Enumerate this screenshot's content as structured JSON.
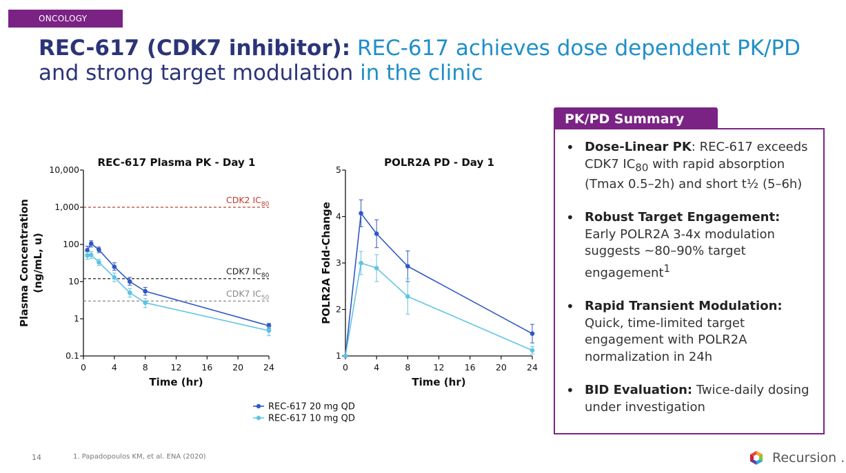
{
  "header": {
    "tag": "ONCOLOGY"
  },
  "title": {
    "bold": "REC-617 (CDK7 inhibitor):",
    "line1_rest": " REC-617 achieves dose dependent PK/PD",
    "line2_part1": "and strong target modulation",
    "line2_part2": " in the clinic"
  },
  "chart_data": [
    {
      "type": "line",
      "title": "REC-617 Plasma PK - Day 1",
      "xlabel": "Time (hr)",
      "ylabel": "Plasma Concentration (ng/mL, u)",
      "yscale": "log",
      "xlim": [
        0,
        24
      ],
      "ylim": [
        0.1,
        10000
      ],
      "xticks": [
        "0",
        "4",
        "8",
        "12",
        "16",
        "20",
        "24"
      ],
      "yticks": [
        "0.1",
        "1",
        "10",
        "100",
        "1,000",
        "10,000"
      ],
      "series": [
        {
          "name": "REC-617 20 mg QD",
          "color": "#2f57c4",
          "x": [
            0.5,
            1,
            2,
            4,
            6,
            8,
            24
          ],
          "y": [
            70,
            105,
            72,
            25,
            10,
            5.5,
            0.65
          ],
          "err": [
            [
              55,
              90
            ],
            [
              85,
              125
            ],
            [
              60,
              85
            ],
            [
              20,
              32
            ],
            [
              8,
              13
            ],
            [
              4.3,
              7
            ],
            [
              0.55,
              0.75
            ]
          ]
        },
        {
          "name": "REC-617 10 mg QD",
          "color": "#5fc4e2",
          "x": [
            0.5,
            1,
            2,
            4,
            6,
            8,
            24
          ],
          "y": [
            50,
            52,
            33,
            13,
            5,
            2.7,
            0.48
          ],
          "err": [
            [
              40,
              62
            ],
            [
              42,
              64
            ],
            [
              27,
              40
            ],
            [
              10,
              17
            ],
            [
              3.8,
              6.5
            ],
            [
              2,
              3.5
            ],
            [
              0.35,
              0.6
            ]
          ]
        }
      ],
      "reference_lines": [
        {
          "label": "CDK2 IC",
          "sub": "80",
          "value": 1000,
          "color": "#c0392b"
        },
        {
          "label": "CDK7 IC",
          "sub": "80",
          "value": 12,
          "color": "#222222"
        },
        {
          "label": "CDK7 IC",
          "sub": "50",
          "value": 3,
          "color": "#888888"
        }
      ]
    },
    {
      "type": "line",
      "title": "POLR2A PD - Day 1",
      "xlabel": "Time (hr)",
      "ylabel": "POLR2A Fold-Change",
      "xlim": [
        0,
        24
      ],
      "ylim": [
        1,
        5
      ],
      "xticks": [
        "0",
        "4",
        "8",
        "12",
        "16",
        "20",
        "24"
      ],
      "yticks": [
        "1",
        "2",
        "3",
        "4",
        "5"
      ],
      "series": [
        {
          "name": "REC-617 20 mg QD",
          "color": "#2f57c4",
          "x": [
            0,
            2,
            4,
            8,
            24
          ],
          "y": [
            1.0,
            4.07,
            3.63,
            2.93,
            1.48
          ],
          "err": [
            null,
            [
              3.78,
              4.36
            ],
            [
              3.33,
              3.93
            ],
            [
              2.6,
              3.26
            ],
            [
              1.28,
              1.68
            ]
          ]
        },
        {
          "name": "REC-617 10 mg QD",
          "color": "#5fc4e2",
          "x": [
            0,
            2,
            4,
            8,
            24
          ],
          "y": [
            1.0,
            3.0,
            2.89,
            2.28,
            1.12
          ],
          "err": [
            null,
            [
              2.75,
              3.25
            ],
            [
              2.6,
              3.18
            ],
            [
              1.9,
              2.66
            ],
            [
              1.04,
              1.2
            ]
          ]
        }
      ]
    }
  ],
  "legend": [
    "REC-617 20 mg QD",
    "REC-617 10 mg QD"
  ],
  "summary": {
    "heading": "PK/PD Summary",
    "items": [
      {
        "bold": "Dose-Linear PK",
        "text_html": ": REC-617 exceeds CDK7 IC<sub>80</sub> with rapid absorption (Tmax 0.5–2h) and short t½ (5–6h)"
      },
      {
        "bold": "Robust Target Engagement:",
        "text_html": " Early POLR2A 3-4x modulation suggests ~80–90% target engagement<sup>1</sup>"
      },
      {
        "bold": "Rapid Transient Modulation:",
        "text_html": " Quick, time-limited target engagement with POLR2A normalization in 24h"
      },
      {
        "bold": "BID Evaluation:",
        "text_html": " Twice-daily dosing under investigation"
      }
    ]
  },
  "footer": {
    "page": "14",
    "footnote": "1.   Papadopoulos KM, et al. ENA (2020)",
    "logo": "Recursion",
    "logo_dot": "."
  }
}
